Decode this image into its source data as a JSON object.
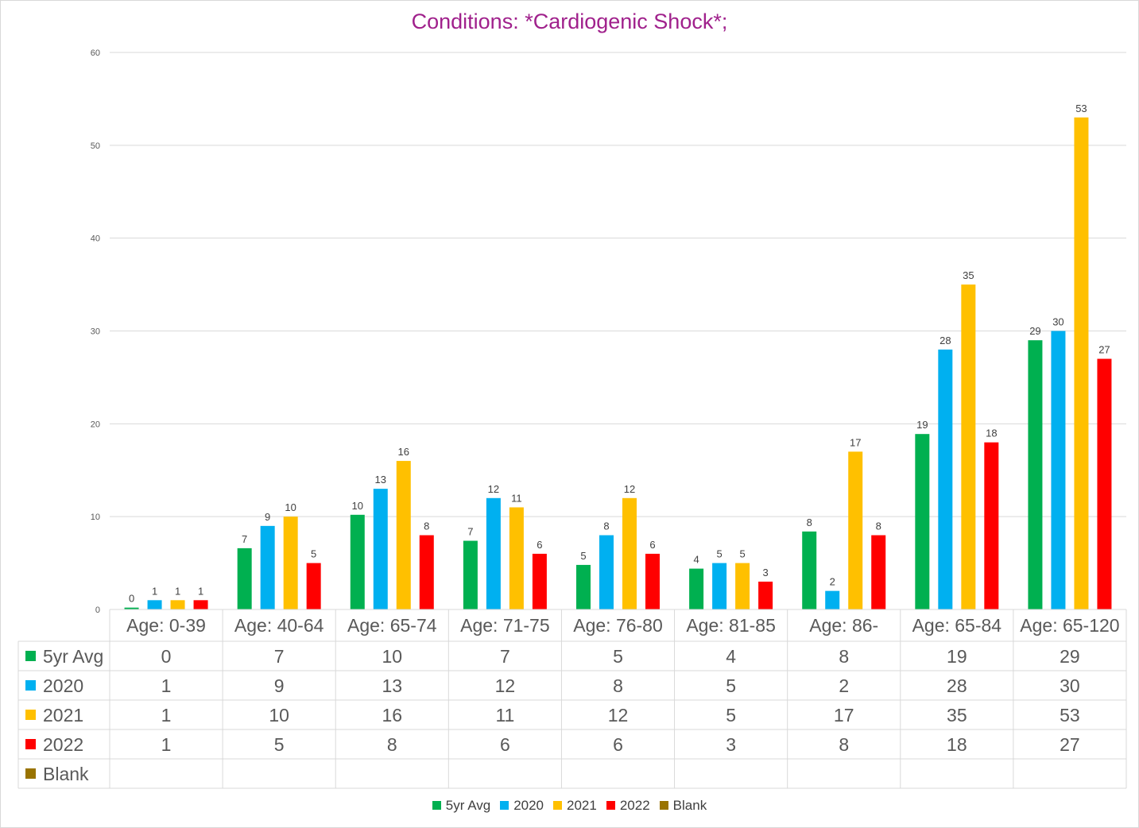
{
  "chart_data": {
    "type": "bar",
    "title": "Conditions: *Cardiogenic Shock*;",
    "xlabel": "",
    "ylabel": "",
    "ylim": [
      0,
      60
    ],
    "yticks": [
      0,
      10,
      20,
      30,
      40,
      50,
      60
    ],
    "grid": true,
    "legend_position": "bottom",
    "data_table": true,
    "categories": [
      "Age: 0-39",
      "Age: 40-64",
      "Age: 65-74",
      "Age: 71-75",
      "Age: 76-80",
      "Age: 81-85",
      "Age: 86-",
      "Age: 65-84",
      "Age: 65-120"
    ],
    "series": [
      {
        "name": "5yr Avg",
        "color": "#00b050",
        "values": [
          0.2,
          6.6,
          10.2,
          7.4,
          4.8,
          4.4,
          8.4,
          18.9,
          29.0
        ],
        "labels": [
          "0",
          "7",
          "10",
          "7",
          "5",
          "4",
          "8",
          "19",
          "29"
        ]
      },
      {
        "name": "2020",
        "color": "#00b0f0",
        "values": [
          1,
          9,
          13,
          12,
          8,
          5,
          2,
          28,
          30
        ],
        "labels": [
          "1",
          "9",
          "13",
          "12",
          "8",
          "5",
          "2",
          "28",
          "30"
        ]
      },
      {
        "name": "2021",
        "color": "#ffc000",
        "values": [
          1,
          10,
          16,
          11,
          12,
          5,
          17,
          35,
          53
        ],
        "labels": [
          "1",
          "10",
          "16",
          "11",
          "12",
          "5",
          "17",
          "35",
          "53"
        ]
      },
      {
        "name": "2022",
        "color": "#ff0000",
        "values": [
          1,
          5,
          8,
          6,
          6,
          3,
          8,
          18,
          27
        ],
        "labels": [
          "1",
          "5",
          "8",
          "6",
          "6",
          "3",
          "8",
          "18",
          "27"
        ]
      },
      {
        "name": "Blank",
        "color": "#997300",
        "values": [
          null,
          null,
          null,
          null,
          null,
          null,
          null,
          null,
          null
        ],
        "labels": [
          "",
          "",
          "",
          "",
          "",
          "",
          "",
          "",
          ""
        ]
      }
    ]
  }
}
